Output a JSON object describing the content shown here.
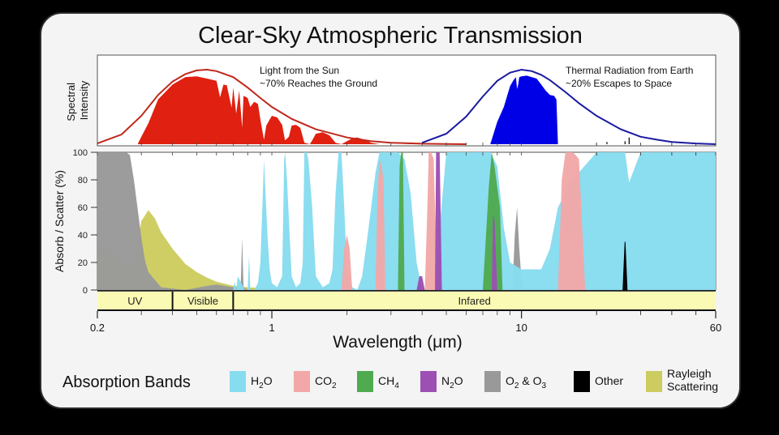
{
  "chart_data": {
    "type": "area",
    "title": "Clear-Sky Atmospheric Transmission",
    "xlabel": "Wavelength (μm)",
    "xscale": "log",
    "xlim": [
      0.2,
      60
    ],
    "xticks": [
      {
        "value": 0.2,
        "label": "0.2"
      },
      {
        "value": 1,
        "label": "1"
      },
      {
        "value": 10,
        "label": "10"
      },
      {
        "value": 60,
        "label": "60"
      }
    ],
    "top_panel": {
      "ylabel": "Spectral Intensity",
      "series": [
        {
          "name": "Light from the Sun",
          "annotation": [
            "Light from the Sun",
            "~70% Reaches the Ground"
          ],
          "envelope_color": "#c0281c",
          "fill_color": "#e02010",
          "envelope_x": [
            0.2,
            0.25,
            0.3,
            0.35,
            0.4,
            0.45,
            0.5,
            0.55,
            0.6,
            0.7,
            0.8,
            0.9,
            1.0,
            1.2,
            1.5,
            2.0,
            2.5,
            3.0,
            4.0,
            5.0,
            6.0
          ],
          "envelope_y": [
            0.01,
            0.13,
            0.38,
            0.66,
            0.84,
            0.94,
            0.99,
            1.0,
            0.98,
            0.9,
            0.76,
            0.62,
            0.5,
            0.34,
            0.2,
            0.09,
            0.04,
            0.02,
            0.006,
            0.002,
            0.0
          ],
          "fill_x": [
            0.29,
            0.3,
            0.32,
            0.35,
            0.4,
            0.45,
            0.5,
            0.55,
            0.6,
            0.62,
            0.64,
            0.66,
            0.69,
            0.7,
            0.72,
            0.74,
            0.76,
            0.77,
            0.79,
            0.8,
            0.82,
            0.85,
            0.88,
            0.9,
            0.93,
            0.95,
            0.98,
            1.0,
            1.05,
            1.1,
            1.13,
            1.17,
            1.2,
            1.25,
            1.3,
            1.35,
            1.42,
            1.45,
            1.5,
            1.6,
            1.7,
            1.8,
            1.9,
            2.0,
            2.1,
            2.2,
            2.3,
            2.4,
            2.5,
            2.7,
            3.0,
            3.4,
            3.8,
            4.0,
            4.2,
            4.5,
            4.7,
            5.0
          ],
          "fill_y": [
            0.0,
            0.1,
            0.28,
            0.6,
            0.8,
            0.9,
            0.91,
            0.88,
            0.85,
            0.63,
            0.8,
            0.79,
            0.49,
            0.76,
            0.41,
            0.72,
            0.22,
            0.65,
            0.63,
            0.62,
            0.5,
            0.57,
            0.54,
            0.33,
            0.06,
            0.25,
            0.33,
            0.38,
            0.36,
            0.26,
            0.05,
            0.1,
            0.25,
            0.26,
            0.22,
            0.02,
            0.0,
            0.05,
            0.14,
            0.16,
            0.12,
            0.02,
            0.0,
            0.04,
            0.08,
            0.09,
            0.07,
            0.05,
            0.02,
            0.0,
            0.0,
            0.0,
            0.01,
            0.02,
            0.01,
            0.0,
            0.004,
            0.0
          ]
        },
        {
          "name": "Thermal Radiation from Earth",
          "annotation": [
            "Thermal Radiation from Earth",
            "~20% Escapes to Space"
          ],
          "envelope_color": "#1a1aa0",
          "fill_color": "#0000e6",
          "envelope_x": [
            4,
            5,
            6,
            7,
            8,
            9,
            10,
            11,
            12,
            13,
            15,
            17,
            20,
            25,
            30,
            35,
            40,
            50,
            60
          ],
          "envelope_y": [
            0.02,
            0.14,
            0.37,
            0.64,
            0.85,
            0.96,
            1.0,
            0.98,
            0.93,
            0.86,
            0.7,
            0.55,
            0.38,
            0.2,
            0.1,
            0.06,
            0.03,
            0.01,
            0.0
          ],
          "fill_x": [
            7.5,
            8.0,
            8.5,
            9.0,
            9.3,
            9.5,
            9.6,
            9.7,
            9.8,
            10.0,
            10.5,
            11.0,
            11.5,
            12.0,
            12.5,
            13.0,
            13.5,
            13.8,
            14.0
          ],
          "fill_y": [
            0.0,
            0.3,
            0.5,
            0.78,
            0.86,
            0.9,
            0.74,
            0.8,
            0.9,
            0.91,
            0.92,
            0.9,
            0.88,
            0.8,
            0.72,
            0.66,
            0.65,
            0.6,
            0.0
          ]
        }
      ]
    },
    "bottom_panel": {
      "ylabel": "Absorb / Scatter (%)",
      "ylim": [
        0,
        100
      ],
      "yticks": [
        0,
        20,
        40,
        60,
        80,
        100
      ],
      "bands": [
        {
          "name": "Rayleigh Scattering",
          "color": "#cccc60",
          "x": [
            0.2,
            0.22,
            0.25,
            0.28,
            0.3,
            0.32,
            0.34,
            0.36,
            0.4,
            0.45,
            0.5,
            0.55,
            0.6,
            0.7,
            0.8,
            1.0,
            1.5,
            2.0,
            3.0
          ],
          "y": [
            32,
            28,
            20,
            18,
            50,
            58,
            52,
            42,
            30,
            19,
            13,
            9,
            6,
            3,
            2,
            1,
            0.3,
            0.1,
            0
          ]
        },
        {
          "name": "O2 & O3",
          "color": "#999999",
          "x": [
            0.2,
            0.26,
            0.27,
            0.28,
            0.3,
            0.31,
            0.32,
            0.36,
            0.45,
            0.55,
            0.6,
            0.7,
            0.75,
            0.76,
            0.77,
            0.8,
            9.2,
            9.4,
            9.6,
            9.8,
            10.0,
            10.1
          ],
          "y": [
            100,
            100,
            98,
            80,
            38,
            22,
            13,
            2,
            0,
            3,
            4,
            2,
            2,
            38,
            2,
            0,
            0,
            40,
            60,
            30,
            8,
            0
          ]
        },
        {
          "name": "H2O",
          "color": "#87dcef",
          "x": [
            0.7,
            0.71,
            0.72,
            0.73,
            0.78,
            0.8,
            0.81,
            0.82,
            0.85,
            0.88,
            0.9,
            0.92,
            0.93,
            0.96,
            0.98,
            1.0,
            1.05,
            1.1,
            1.12,
            1.13,
            1.15,
            1.2,
            1.25,
            1.3,
            1.33,
            1.35,
            1.38,
            1.4,
            1.45,
            1.5,
            1.6,
            1.7,
            1.75,
            1.8,
            1.85,
            1.87,
            1.9,
            1.95,
            2.0,
            2.1,
            2.2,
            2.3,
            2.4,
            2.5,
            2.6,
            2.7,
            2.8,
            3.0,
            3.2,
            3.4,
            3.6,
            3.8,
            4.0,
            4.2,
            4.5,
            4.7,
            5.0,
            5.5,
            6.0,
            6.5,
            7.0,
            7.5,
            8.0,
            8.5,
            9.0,
            10.0,
            11.0,
            12.0,
            13.0,
            14.0,
            16.0,
            20.0,
            24.0,
            26.0,
            27.0,
            30.0,
            40.0,
            60.0
          ],
          "y": [
            0,
            6,
            0,
            10,
            0,
            0,
            25,
            0,
            0,
            5,
            20,
            70,
            95,
            40,
            15,
            5,
            2,
            10,
            95,
            100,
            80,
            10,
            2,
            5,
            20,
            100,
            100,
            95,
            60,
            10,
            2,
            5,
            15,
            70,
            100,
            100,
            100,
            60,
            15,
            2,
            0,
            10,
            35,
            60,
            85,
            100,
            100,
            100,
            100,
            95,
            70,
            20,
            0,
            0,
            0,
            45,
            100,
            100,
            100,
            100,
            100,
            100,
            90,
            45,
            20,
            15,
            15,
            15,
            30,
            60,
            80,
            100,
            100,
            100,
            78,
            100,
            100,
            100
          ]
        },
        {
          "name": "CO2",
          "color": "#f2a8a8",
          "x": [
            1.9,
            1.95,
            2.0,
            2.05,
            2.1,
            2.6,
            2.65,
            2.7,
            2.75,
            2.8,
            2.85,
            4.1,
            4.2,
            4.25,
            4.35,
            4.45,
            4.6,
            14.0,
            14.5,
            15.0,
            15.5,
            16.0,
            16.5,
            17.0,
            18.0
          ],
          "y": [
            0,
            30,
            40,
            30,
            0,
            0,
            70,
            95,
            90,
            80,
            0,
            0,
            60,
            100,
            100,
            95,
            0,
            0,
            80,
            100,
            100,
            100,
            98,
            95,
            0
          ]
        },
        {
          "name": "CH4",
          "color": "#50aa50",
          "x": [
            3.2,
            3.25,
            3.3,
            3.35,
            3.4,
            7.0,
            7.4,
            7.6,
            7.8,
            8.2,
            8.4
          ],
          "y": [
            0,
            90,
            100,
            100,
            0,
            0,
            75,
            100,
            90,
            60,
            0
          ]
        },
        {
          "name": "N2O",
          "color": "#9c50b4",
          "x": [
            3.8,
            3.9,
            4.0,
            4.1,
            4.5,
            4.5,
            4.55,
            4.6,
            4.7,
            4.8,
            7.6,
            7.7,
            7.8,
            8.0
          ],
          "y": [
            0,
            10,
            10,
            0,
            0,
            0,
            100,
            100,
            100,
            0,
            0,
            55,
            50,
            0
          ]
        },
        {
          "name": "Other",
          "color": "#000000",
          "x": [
            25.5,
            26.0,
            26.5
          ],
          "y": [
            0,
            35,
            0
          ]
        }
      ],
      "spectrum_regions": [
        {
          "label": "UV",
          "from": 0.2,
          "to": 0.4
        },
        {
          "label": "Visible",
          "from": 0.4,
          "to": 0.7
        },
        {
          "label": "Infared",
          "from": 0.7,
          "to": 60
        }
      ]
    },
    "legend": {
      "title": "Absorption Bands",
      "items": [
        {
          "name": "H2O",
          "main": "H",
          "sub": "2",
          "tail": "O",
          "color": "#87dcef"
        },
        {
          "name": "CO2",
          "main": "CO",
          "sub": "2",
          "tail": "",
          "color": "#f2a8a8"
        },
        {
          "name": "CH4",
          "main": "CH",
          "sub": "4",
          "tail": "",
          "color": "#50aa50"
        },
        {
          "name": "N2O",
          "main": "N",
          "sub": "2",
          "tail": "O",
          "color": "#9c50b4"
        },
        {
          "name": "O2 & O3",
          "main": "O",
          "sub": "2",
          "tail": " & O",
          "sub2": "3",
          "color": "#999999"
        },
        {
          "name": "Other",
          "main": "Other",
          "sub": "",
          "tail": "",
          "color": "#000000"
        },
        {
          "name": "Rayleigh Scattering",
          "main": "Rayleigh",
          "line2": "Scattering",
          "sub": "",
          "tail": "",
          "color": "#cccc60"
        }
      ]
    }
  }
}
